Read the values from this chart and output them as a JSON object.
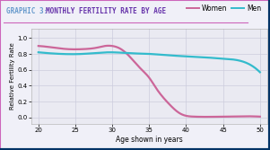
{
  "title_graphic": "GRAPHIC 3:",
  "title_main": "MONTHLY FERTILITY RATE BY AGE",
  "xlabel": "Age shown in years",
  "ylabel": "Relative Fertility Rate",
  "xlim": [
    19,
    51
  ],
  "ylim": [
    -0.08,
    1.12
  ],
  "xticks": [
    20,
    25,
    30,
    35,
    40,
    45,
    50
  ],
  "yticks": [
    0.0,
    0.2,
    0.4,
    0.6,
    0.8,
    1.0
  ],
  "women_color": "#cc6699",
  "men_color": "#33bbcc",
  "title_graphic_color": "#6699cc",
  "title_main_color": "#6633aa",
  "background_outer": "#f0f0f8",
  "background_chart": "#eaeaf2",
  "border_color_top": "#cc66bb",
  "border_color_right": "#003366",
  "title_underline_color": "#cc66bb",
  "women_x": [
    20,
    22,
    24,
    26,
    28,
    29,
    30,
    31,
    32,
    33,
    34,
    35,
    36,
    37,
    38,
    39,
    40,
    41,
    45,
    50
  ],
  "women_y": [
    0.9,
    0.88,
    0.86,
    0.86,
    0.88,
    0.9,
    0.9,
    0.87,
    0.8,
    0.7,
    0.6,
    0.5,
    0.36,
    0.24,
    0.14,
    0.06,
    0.02,
    0.01,
    0.01,
    0.01
  ],
  "men_x": [
    20,
    23,
    26,
    30,
    32,
    35,
    38,
    40,
    42,
    45,
    47,
    50
  ],
  "men_y": [
    0.82,
    0.8,
    0.8,
    0.82,
    0.81,
    0.8,
    0.78,
    0.77,
    0.76,
    0.74,
    0.72,
    0.57
  ],
  "legend_women": "Women",
  "legend_men": "Men",
  "grid_color": "#ccccdd"
}
